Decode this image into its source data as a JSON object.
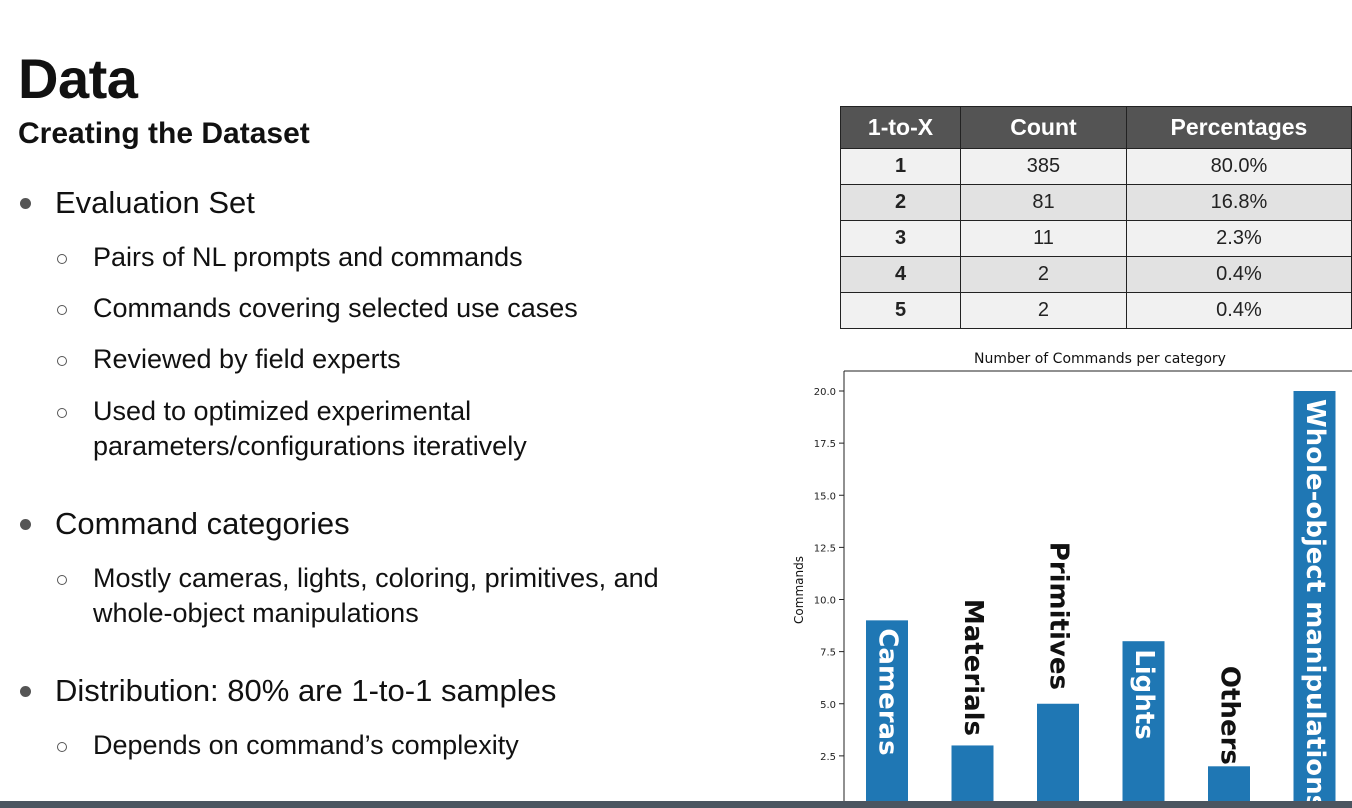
{
  "slide": {
    "title": "Data",
    "subtitle": "Creating the Dataset",
    "items": [
      {
        "text": "Evaluation Set",
        "children": [
          "Pairs of NL prompts and commands",
          "Commands covering selected use cases",
          "Reviewed by field experts",
          "Used to optimized experimental\nparameters/configurations iteratively"
        ]
      },
      {
        "text": "Command categories",
        "children": [
          "Mostly cameras, lights, coloring, primitives, and\nwhole-object manipulations"
        ]
      },
      {
        "text": "Distribution: 80% are 1-to-1 samples",
        "children": [
          "Depends on command’s complexity"
        ]
      }
    ]
  },
  "table": {
    "headers": [
      "1-to-X",
      "Count",
      "Percentages"
    ],
    "rows": [
      [
        "1",
        "385",
        "80.0%"
      ],
      [
        "2",
        "81",
        "16.8%"
      ],
      [
        "3",
        "11",
        "2.3%"
      ],
      [
        "4",
        "2",
        "0.4%"
      ],
      [
        "5",
        "2",
        "0.4%"
      ]
    ]
  },
  "chart_data": {
    "type": "bar",
    "title": "Number of Commands per category",
    "xlabel": "",
    "ylabel": "Commands",
    "categories": [
      "Cameras",
      "Materials",
      "Primitives",
      "Lights",
      "Others",
      "Whole-object manipulations"
    ],
    "values": [
      9,
      3,
      5,
      8,
      2,
      20
    ],
    "ylim": [
      0,
      21
    ],
    "yticks": [
      "0.0",
      "2.5",
      "5.0",
      "7.5",
      "10.0",
      "12.5",
      "15.0",
      "17.5",
      "20.0"
    ],
    "bar_color": "#1f77b4",
    "grid": false,
    "legend": "none"
  }
}
